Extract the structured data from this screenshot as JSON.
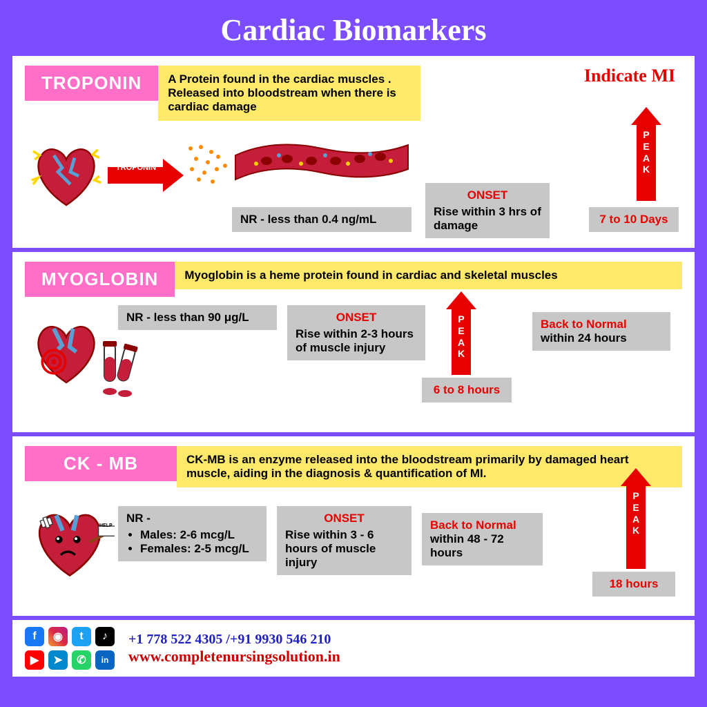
{
  "title": "Cardiac Biomarkers",
  "colors": {
    "frame": "#7c4dff",
    "pink": "#ff6ec7",
    "yellow": "#ffe96b",
    "gray": "#c7c7c7",
    "red": "#e60000",
    "blue": "#2020c0"
  },
  "troponin": {
    "label": "TROPONIN",
    "desc": "A Protein found in the cardiac muscles . Released into bloodstream when there is cardiac damage",
    "indicate": "Indicate MI",
    "arrow_label": "TROPONIN",
    "nr": "NR -  less than 0.4 ng/mL",
    "onset_label": "ONSET",
    "onset": "Rise within 3 hrs of damage",
    "peak_word": "PEAK",
    "peak_time": "7 to 10 Days"
  },
  "myoglobin": {
    "label": "MYOGLOBIN",
    "desc": "Myoglobin is a heme protein found in cardiac and skeletal muscles",
    "nr": "NR -  less than 90 μg/L",
    "onset_label": "ONSET",
    "onset": "Rise within 2-3 hours of muscle injury",
    "peak_word": "PEAK",
    "peak_time": "6 to 8 hours",
    "back_label": "Back to Normal",
    "back_time": "within 24 hours"
  },
  "ckmb": {
    "label": "CK - MB",
    "desc": "CK-MB is an enzyme released into the bloodstream primarily by damaged heart muscle, aiding in the diagnosis & quantification of MI.",
    "nr_label": "NR -",
    "nr_male": "Males: 2-6 mcg/L",
    "nr_female": "Females: 2-5 mcg/L",
    "onset_label": "ONSET",
    "onset": "Rise within 3 - 6 hours of muscle injury",
    "back_label": "Back to Normal",
    "back_time": "within 48 - 72 hours",
    "peak_word": "PEAK",
    "peak_time": "18 hours",
    "help_label": "HELP"
  },
  "footer": {
    "phone": "+1 778 522 4305 /+91 9930 546 210",
    "url": "www.completenursingsolution.in",
    "icons": [
      {
        "name": "facebook",
        "bg": "#1877f2",
        "glyph": "f"
      },
      {
        "name": "instagram",
        "bg": "linear-gradient(45deg,#f09433,#e6683c,#dc2743,#cc2366,#bc1888)",
        "glyph": "◉"
      },
      {
        "name": "twitter",
        "bg": "#1da1f2",
        "glyph": "t"
      },
      {
        "name": "tiktok",
        "bg": "#000000",
        "glyph": "♪"
      },
      {
        "name": "youtube",
        "bg": "#ff0000",
        "glyph": "▶"
      },
      {
        "name": "telegram",
        "bg": "#0088cc",
        "glyph": "➤"
      },
      {
        "name": "whatsapp",
        "bg": "#25d366",
        "glyph": "✆"
      },
      {
        "name": "linkedin",
        "bg": "#0a66c2",
        "glyph": "in"
      }
    ]
  }
}
